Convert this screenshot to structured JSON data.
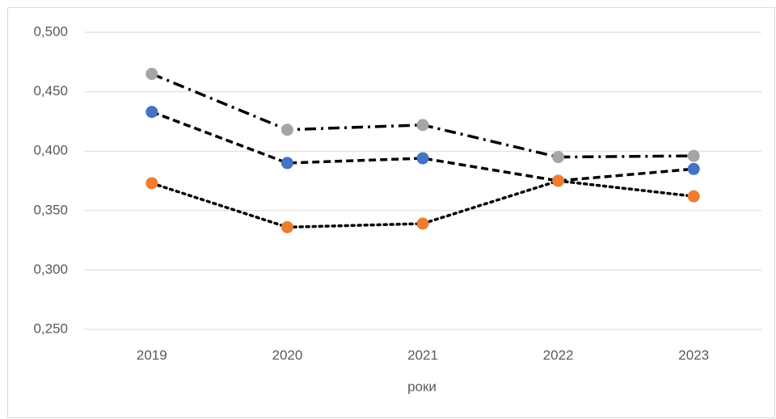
{
  "chart_data": {
    "type": "line",
    "x_label": "роки",
    "categories": [
      "2019",
      "2020",
      "2021",
      "2022",
      "2023"
    ],
    "series": [
      {
        "color": "#a5a5a5",
        "line_color": "#000000",
        "line_style": "dashdot",
        "values": [
          0.465,
          0.418,
          0.422,
          0.395,
          0.396
        ]
      },
      {
        "color": "#4472c4",
        "line_color": "#000000",
        "line_style": "dashed",
        "values": [
          0.433,
          0.39,
          0.394,
          0.375,
          0.385
        ]
      },
      {
        "color": "#ed7d31",
        "line_color": "#000000",
        "line_style": "dotted",
        "values": [
          0.373,
          0.336,
          0.339,
          0.375,
          0.362
        ]
      }
    ],
    "ylim": [
      0.25,
      0.5
    ],
    "yticks": [
      {
        "value": 0.25,
        "label": "0,250"
      },
      {
        "value": 0.3,
        "label": "0,300"
      },
      {
        "value": 0.35,
        "label": "0,350"
      },
      {
        "value": 0.4,
        "label": "0,400"
      },
      {
        "value": 0.45,
        "label": "0,450"
      },
      {
        "value": 0.5,
        "label": "0,500"
      }
    ],
    "grid": true
  }
}
